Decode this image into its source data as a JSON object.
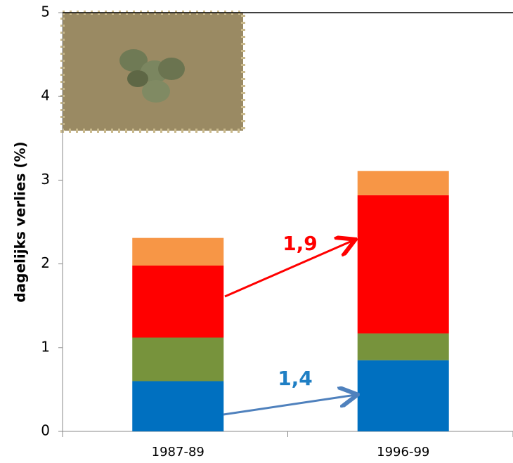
{
  "chart_data": {
    "type": "stacked-bar",
    "y_label": "dagelijks verlies (%)",
    "categories": [
      "1987-89",
      "1996-99"
    ],
    "series": [
      {
        "color": "#0070c0",
        "values": [
          0.6,
          0.85
        ]
      },
      {
        "color": "#77933c",
        "values": [
          0.52,
          0.32
        ]
      },
      {
        "color": "#ff0000",
        "values": [
          0.86,
          1.65
        ]
      },
      {
        "color": "#f79646",
        "values": [
          0.33,
          0.29
        ]
      }
    ],
    "ylim": [
      0,
      5
    ],
    "yticks": [
      0,
      1,
      2,
      3,
      4,
      5
    ],
    "annotations": [
      {
        "text": "1,9",
        "color": "#ff0000"
      },
      {
        "text": "1,4",
        "color": "#1f7fc4"
      }
    ]
  }
}
